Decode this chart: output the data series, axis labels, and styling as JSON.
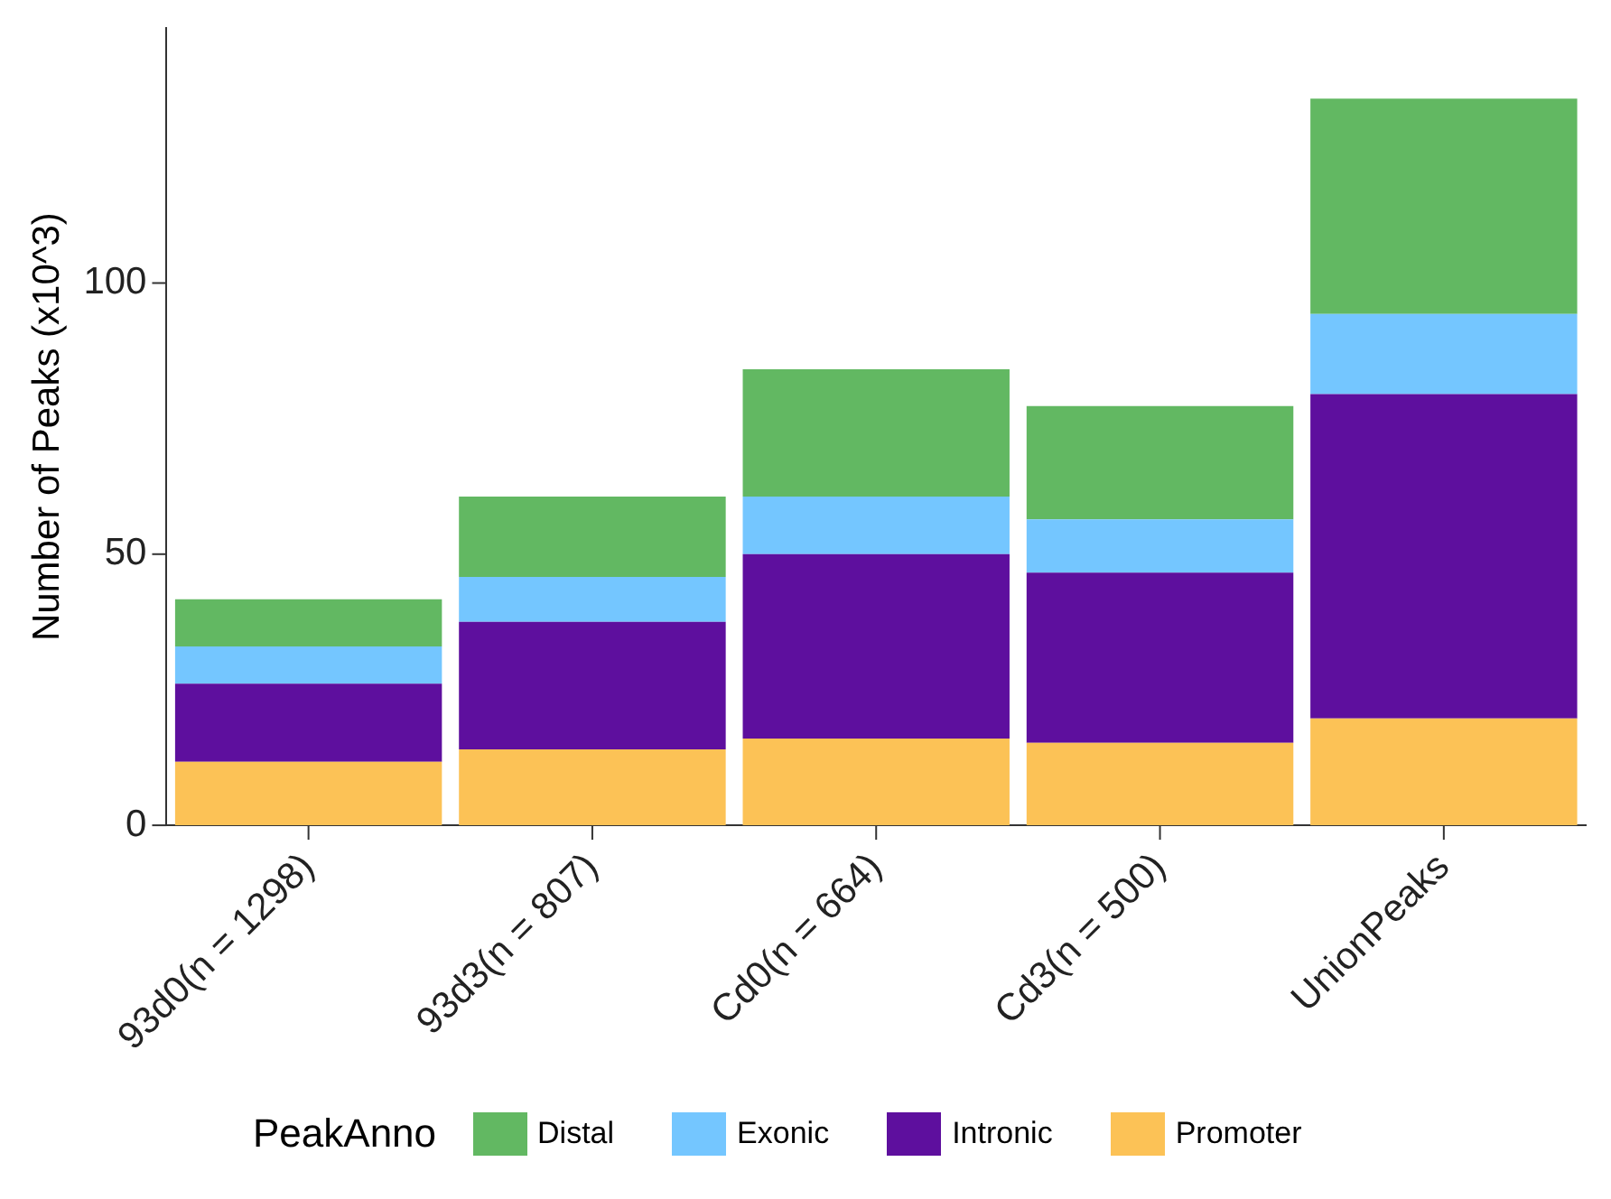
{
  "chart_data": {
    "type": "bar",
    "stacked": true,
    "ylabel": "Number of Peaks (x10^3)",
    "legend_title": "PeakAnno",
    "legend": "bottom",
    "grid": false,
    "categories": [
      "93d0(n = 1298)",
      "93d3(n = 807)",
      "Cd0(n = 664)",
      "Cd3(n = 500)",
      "UnionPeaks"
    ],
    "ylim": [
      0,
      147
    ],
    "yticks": [
      0,
      50,
      100
    ],
    "series": [
      {
        "name": "Promoter",
        "color": "#fcc256",
        "values": [
          11.7,
          14,
          16,
          15.2,
          19.7
        ]
      },
      {
        "name": "Intronic",
        "color": "#5e0f9e",
        "values": [
          14.4,
          23.5,
          34,
          31.4,
          59.8
        ]
      },
      {
        "name": "Exonic",
        "color": "#74c6ff",
        "values": [
          6.9,
          8.3,
          10.6,
          9.8,
          14.8
        ]
      },
      {
        "name": "Distal",
        "color": "#62b862",
        "values": [
          8.7,
          14.8,
          23.5,
          20.9,
          39.7
        ]
      }
    ]
  }
}
